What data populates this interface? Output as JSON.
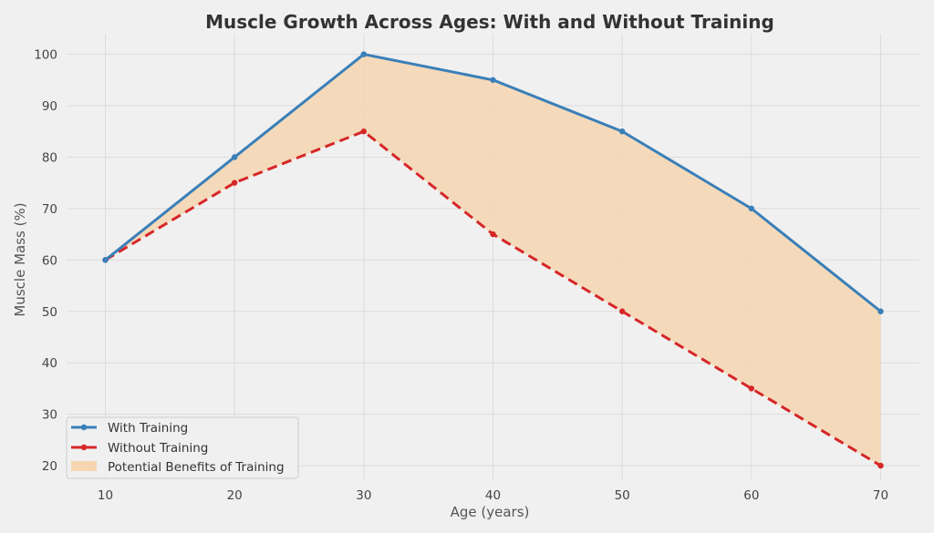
{
  "chart_data": {
    "type": "line",
    "title": "Muscle Growth Across Ages: With and Without Training",
    "xlabel": "Age (years)",
    "ylabel": "Muscle Mass (%)",
    "x": [
      10,
      20,
      30,
      40,
      50,
      60,
      70
    ],
    "xlim": [
      7,
      73
    ],
    "ylim": [
      17,
      104
    ],
    "xticks": [
      10,
      20,
      30,
      40,
      50,
      60,
      70
    ],
    "yticks": [
      20,
      30,
      40,
      50,
      60,
      70,
      80,
      90,
      100
    ],
    "grid": true,
    "legend_position": "bottom-left",
    "series": [
      {
        "name": "With Training",
        "values": [
          60,
          80,
          100,
          95,
          85,
          70,
          50
        ],
        "color": "#3a7fb8",
        "style": "solid",
        "marker": "circle"
      },
      {
        "name": "Without Training",
        "values": [
          60,
          75,
          85,
          65,
          50,
          35,
          20
        ],
        "color": "#d62728",
        "style": "dashed",
        "marker": "circle"
      }
    ],
    "fill_between": {
      "name": "Potential Benefits of Training",
      "color": "#f5d6b0",
      "between": [
        "With Training",
        "Without Training"
      ]
    }
  }
}
